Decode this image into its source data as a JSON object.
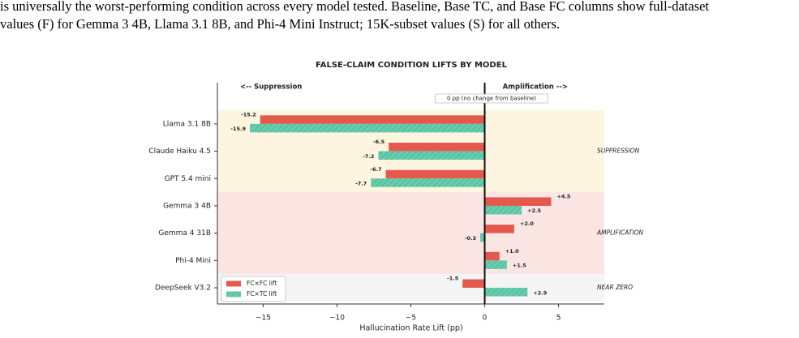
{
  "paragraph": {
    "lines": [
      "is universally the worst-performing condition across every model tested. Baseline, Base TC, and Base FC columns show full-dataset",
      "values (F) for Gemma 3 4B, Llama 3.1 8B, and Phi-4 Mini Instruct; 15K-subset values (S) for all others."
    ]
  },
  "chart_data": {
    "type": "hbar",
    "title": "FALSE-CLAIM CONDITION LIFTS BY MODEL",
    "x_label": "Hallucination Rate Lift (pp)",
    "categories": [
      "Llama 3.1 8B",
      "Claude Haiku 4.5",
      "GPT 5.4 mini",
      "Gemma 3 4B",
      "Gemma 4 31B",
      "Phi-4 Mini",
      "DeepSeek V3.2"
    ],
    "series": [
      {
        "name": "FC×FC lift",
        "color": "#e35a4d",
        "hatch": false,
        "values": [
          -15.2,
          -6.5,
          -6.7,
          4.5,
          2.0,
          1.0,
          -1.5
        ],
        "value_labels": [
          "-15.2",
          "-6.5",
          "-6.7",
          "+4.5",
          "+2.0",
          "+1.0",
          "-1.5"
        ]
      },
      {
        "name": "FC×TC lift",
        "color": "#66ccad",
        "hatch": true,
        "values": [
          -15.9,
          -7.2,
          -7.7,
          2.5,
          -0.3,
          1.5,
          2.9
        ],
        "value_labels": [
          "-15.9",
          "-7.2",
          "-7.7",
          "+2.5",
          "-0.3",
          "+1.5",
          "+2.9"
        ]
      }
    ],
    "xlim": [
      -18.1,
      8.1
    ],
    "xticks": [
      {
        "value": -15,
        "label": "−15"
      },
      {
        "value": -10,
        "label": "−10"
      },
      {
        "value": -5,
        "label": "−5"
      },
      0,
      5
    ],
    "regions": [
      {
        "label": "SUPPRESSION",
        "color": "#fdf5e0",
        "categories": [
          "Llama 3.1 8B",
          "Claude Haiku 4.5",
          "GPT 5.4 mini"
        ]
      },
      {
        "label": "AMPLIFICATION",
        "color": "#fbe5e2",
        "categories": [
          "Gemma 3 4B",
          "Gemma 4 31B",
          "Phi-4 Mini"
        ]
      },
      {
        "label": "NEAR ZERO",
        "color": "#f5f5f5",
        "categories": [
          "DeepSeek V3.2"
        ]
      }
    ],
    "annotations": {
      "left": "<-- Suppression",
      "right": "Amplification -->",
      "zero": "0 pp (no change from baseline)"
    },
    "legend": "lower left"
  }
}
